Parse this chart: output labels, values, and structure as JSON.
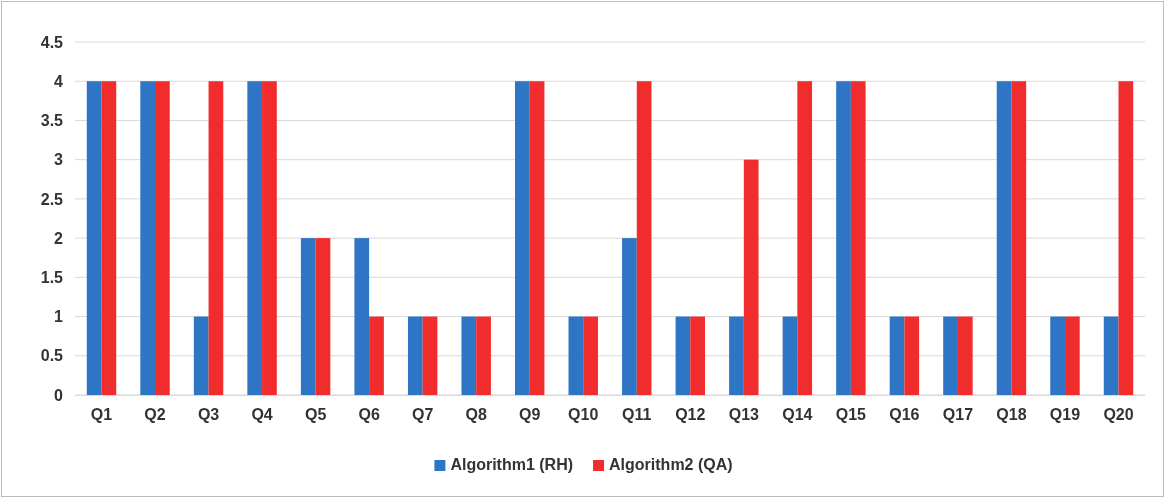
{
  "chart_data": {
    "type": "bar",
    "categories": [
      "Q1",
      "Q2",
      "Q3",
      "Q4",
      "Q5",
      "Q6",
      "Q7",
      "Q8",
      "Q9",
      "Q10",
      "Q11",
      "Q12",
      "Q13",
      "Q14",
      "Q15",
      "Q16",
      "Q17",
      "Q18",
      "Q19",
      "Q20"
    ],
    "series": [
      {
        "name": "Algorithm1 (RH)",
        "color": "#2e75c6",
        "values": [
          4,
          4,
          1,
          4,
          2,
          2,
          1,
          1,
          4,
          1,
          2,
          1,
          1,
          1,
          4,
          1,
          1,
          4,
          1,
          1
        ]
      },
      {
        "name": "Algorithm2 (QA)",
        "color": "#f02c2c",
        "values": [
          4,
          4,
          4,
          4,
          2,
          1,
          1,
          1,
          4,
          1,
          4,
          1,
          3,
          4,
          4,
          1,
          1,
          4,
          1,
          4
        ]
      }
    ],
    "ylim": [
      0,
      4.5
    ],
    "yticks": [
      0,
      0.5,
      1,
      1.5,
      2,
      2.5,
      3,
      3.5,
      4,
      4.5
    ],
    "grid": "y",
    "legend": "bottom"
  }
}
